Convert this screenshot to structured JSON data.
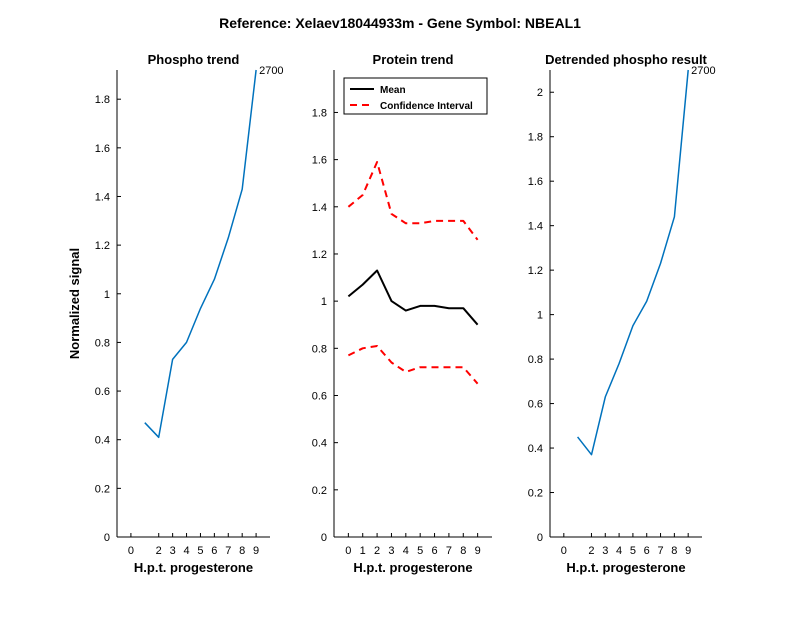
{
  "figure": {
    "title": "Reference:  Xelaev18044933m - Gene Symbol:  NBEAL1",
    "background": "#ffffff"
  },
  "colors": {
    "series_blue": "#0072BD",
    "mean": "#000000",
    "ci": "#FF0000",
    "axis": "#000000"
  },
  "chart_data": [
    {
      "type": "line",
      "title": "Phospho trend",
      "xlabel": "H.p.t. progesterone",
      "ylabel": "Normalized signal",
      "xlim": [
        -1,
        10
      ],
      "ylim": [
        0,
        1.92
      ],
      "xticks": [
        0,
        2,
        3,
        4,
        5,
        6,
        7,
        8,
        9
      ],
      "yticks": [
        0,
        0.2,
        0.4,
        0.6,
        0.8,
        1,
        1.2,
        1.4,
        1.6,
        1.8
      ],
      "grid": false,
      "series": [
        {
          "color": "#0072BD",
          "x": [
            1,
            2,
            3,
            4,
            5,
            6,
            7,
            8,
            9
          ],
          "y": [
            0.47,
            0.41,
            0.73,
            0.8,
            0.94,
            1.06,
            1.23,
            1.43,
            1.92
          ]
        }
      ],
      "annotations": [
        {
          "text": "2700",
          "x": 9,
          "y": 1.92
        }
      ]
    },
    {
      "type": "line",
      "title": "Protein trend",
      "xlabel": "H.p.t. progesterone",
      "ylabel": "",
      "xlim": [
        -1,
        10
      ],
      "ylim": [
        0,
        1.98
      ],
      "xticks": [
        0,
        1,
        2,
        3,
        4,
        5,
        6,
        7,
        8,
        9
      ],
      "yticks": [
        0,
        0.2,
        0.4,
        0.6,
        0.8,
        1,
        1.2,
        1.4,
        1.6,
        1.8
      ],
      "grid": false,
      "legend": {
        "placement": "top-left",
        "entries": [
          "Mean",
          "Confidence Interval"
        ]
      },
      "series": [
        {
          "name": "Mean",
          "color": "#000000",
          "style": "solid",
          "x": [
            0,
            1,
            2,
            3,
            4,
            5,
            6,
            7,
            8,
            9
          ],
          "y": [
            1.02,
            1.07,
            1.13,
            1.0,
            0.96,
            0.98,
            0.98,
            0.97,
            0.97,
            0.9
          ]
        },
        {
          "name": "Confidence Interval",
          "color": "#FF0000",
          "style": "dashed",
          "x": [
            0,
            1,
            2,
            3,
            4,
            5,
            6,
            7,
            8,
            9
          ],
          "y": [
            1.4,
            1.45,
            1.59,
            1.37,
            1.33,
            1.33,
            1.34,
            1.34,
            1.34,
            1.26
          ]
        },
        {
          "name": "",
          "color": "#FF0000",
          "style": "dashed",
          "x": [
            0,
            1,
            2,
            3,
            4,
            5,
            6,
            7,
            8,
            9
          ],
          "y": [
            0.77,
            0.8,
            0.81,
            0.74,
            0.7,
            0.72,
            0.72,
            0.72,
            0.72,
            0.65
          ]
        }
      ]
    },
    {
      "type": "line",
      "title": "Detrended phospho result",
      "xlabel": "H.p.t. progesterone",
      "ylabel": "",
      "xlim": [
        -1,
        10
      ],
      "ylim": [
        0,
        2.1
      ],
      "xticks": [
        0,
        2,
        3,
        4,
        5,
        6,
        7,
        8,
        9
      ],
      "yticks": [
        0,
        0.2,
        0.4,
        0.6,
        0.8,
        1,
        1.2,
        1.4,
        1.6,
        1.8,
        2
      ],
      "grid": false,
      "series": [
        {
          "color": "#0072BD",
          "x": [
            1,
            2,
            3,
            4,
            5,
            6,
            7,
            8,
            9
          ],
          "y": [
            0.45,
            0.37,
            0.63,
            0.78,
            0.95,
            1.06,
            1.23,
            1.44,
            2.1
          ]
        }
      ],
      "annotations": [
        {
          "text": "2700",
          "x": 9,
          "y": 2.1
        }
      ]
    }
  ]
}
